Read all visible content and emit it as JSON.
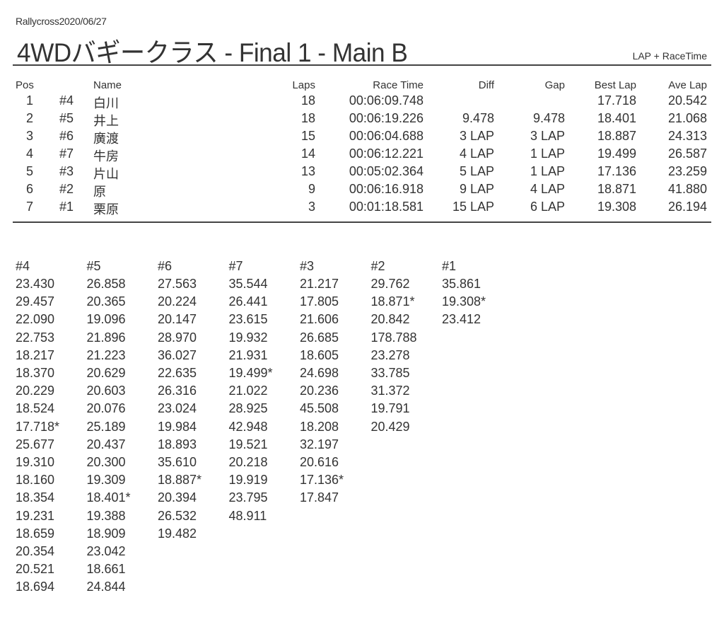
{
  "header": {
    "event": "Rallycross2020/06/27",
    "title": "4WDバギークラス  -  Final 1  -  Main B",
    "mode": "LAP + RaceTime"
  },
  "results": {
    "columns": [
      "Pos",
      "",
      "Name",
      "Laps",
      "Race Time",
      "Diff",
      "Gap",
      "Best Lap",
      "Ave Lap"
    ],
    "rows": [
      [
        "1",
        "#4",
        "白川",
        "18",
        "00:06:09.748",
        "",
        "",
        "17.718",
        "20.542"
      ],
      [
        "2",
        "#5",
        "井上",
        "18",
        "00:06:19.226",
        "9.478",
        "9.478",
        "18.401",
        "21.068"
      ],
      [
        "3",
        "#6",
        "廣渡",
        "15",
        "00:06:04.688",
        "3 LAP",
        "3 LAP",
        "18.887",
        "24.313"
      ],
      [
        "4",
        "#7",
        "牛房",
        "14",
        "00:06:12.221",
        "4 LAP",
        "1 LAP",
        "19.499",
        "26.587"
      ],
      [
        "5",
        "#3",
        "片山",
        "13",
        "00:05:02.364",
        "5 LAP",
        "1 LAP",
        "17.136",
        "23.259"
      ],
      [
        "6",
        "#2",
        "原",
        "9",
        "00:06:16.918",
        "9 LAP",
        "4 LAP",
        "18.871",
        "41.880"
      ],
      [
        "7",
        "#1",
        "栗原",
        "3",
        "00:01:18.581",
        "15 LAP",
        "6 LAP",
        "19.308",
        "26.194"
      ]
    ]
  },
  "laps": [
    {
      "car": "#4",
      "times": [
        "23.430",
        "29.457",
        "22.090",
        "22.753",
        "18.217",
        "18.370",
        "20.229",
        "18.524",
        "17.718*",
        "25.677",
        "19.310",
        "18.160",
        "18.354",
        "19.231",
        "18.659",
        "20.354",
        "20.521",
        "18.694"
      ]
    },
    {
      "car": "#5",
      "times": [
        "26.858",
        "20.365",
        "19.096",
        "21.896",
        "21.223",
        "20.629",
        "20.603",
        "20.076",
        "25.189",
        "20.437",
        "20.300",
        "19.309",
        "18.401*",
        "19.388",
        "18.909",
        "23.042",
        "18.661",
        "24.844"
      ]
    },
    {
      "car": "#6",
      "times": [
        "27.563",
        "20.224",
        "20.147",
        "28.970",
        "36.027",
        "22.635",
        "26.316",
        "23.024",
        "19.984",
        "18.893",
        "35.610",
        "18.887*",
        "20.394",
        "26.532",
        "19.482"
      ]
    },
    {
      "car": "#7",
      "times": [
        "35.544",
        "26.441",
        "23.615",
        "19.932",
        "21.931",
        "19.499*",
        "21.022",
        "28.925",
        "42.948",
        "19.521",
        "20.218",
        "19.919",
        "23.795",
        "48.911"
      ]
    },
    {
      "car": "#3",
      "times": [
        "21.217",
        "17.805",
        "21.606",
        "26.685",
        "18.605",
        "24.698",
        "20.236",
        "45.508",
        "18.208",
        "32.197",
        "20.616",
        "17.136*",
        "17.847"
      ]
    },
    {
      "car": "#2",
      "times": [
        "29.762",
        "18.871*",
        "20.842",
        "178.788",
        "23.278",
        "33.785",
        "31.372",
        "19.791",
        "20.429"
      ]
    },
    {
      "car": "#1",
      "times": [
        "35.861",
        "19.308*",
        "23.412"
      ]
    }
  ]
}
